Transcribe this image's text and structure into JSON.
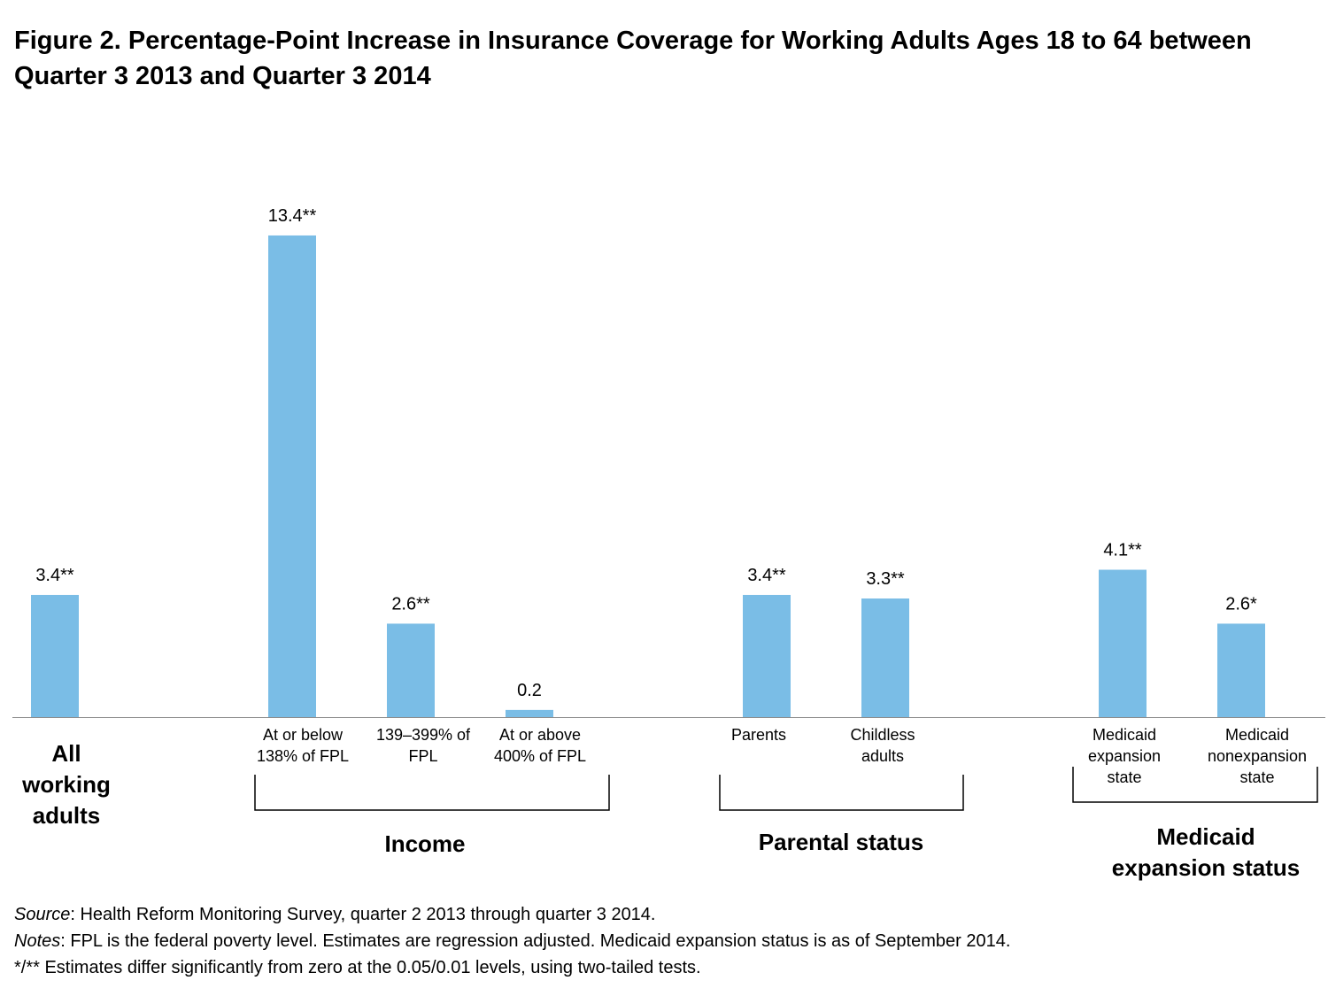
{
  "chart_data": {
    "type": "bar",
    "title": "Figure 2. Percentage-Point Increase in Insurance Coverage for Working Adults Ages 18 to 64 between Quarter 3 2013 and Quarter 3 2014",
    "xlabel": "",
    "ylabel": "",
    "ylim": [
      0,
      15
    ],
    "grid": false,
    "bar_color": "#7ABDE6",
    "categories": [
      {
        "label_lines": [
          "All",
          "working",
          "adults"
        ],
        "value": 3.4,
        "value_label": "3.4**",
        "group": "all"
      },
      {
        "label_lines": [
          "At or below",
          "138% of FPL"
        ],
        "value": 13.4,
        "value_label": "13.4**",
        "group": "income"
      },
      {
        "label_lines": [
          "139–399% of",
          "FPL"
        ],
        "value": 2.6,
        "value_label": "2.6**",
        "group": "income"
      },
      {
        "label_lines": [
          "At or above",
          "400% of FPL"
        ],
        "value": 0.2,
        "value_label": "0.2",
        "group": "income"
      },
      {
        "label_lines": [
          "Parents"
        ],
        "value": 3.4,
        "value_label": "3.4**",
        "group": "parental"
      },
      {
        "label_lines": [
          "Childless",
          "adults"
        ],
        "value": 3.3,
        "value_label": "3.3**",
        "group": "parental"
      },
      {
        "label_lines": [
          "Medicaid",
          "expansion",
          "state"
        ],
        "value": 4.1,
        "value_label": "4.1**",
        "group": "medicaid"
      },
      {
        "label_lines": [
          "Medicaid",
          "nonexpansion",
          "state"
        ],
        "value": 2.6,
        "value_label": "2.6*",
        "group": "medicaid"
      }
    ],
    "groups": [
      {
        "id": "income",
        "label_lines": [
          "Income"
        ]
      },
      {
        "id": "parental",
        "label_lines": [
          "Parental status"
        ]
      },
      {
        "id": "medicaid",
        "label_lines": [
          "Medicaid",
          "expansion status"
        ]
      }
    ]
  },
  "notes": {
    "source_lead": "Source",
    "source_text": ": Health Reform Monitoring Survey, quarter 2 2013 through quarter 3 2014.",
    "notes_lead": "Notes",
    "notes_text": ":  FPL is the federal poverty level.  Estimates are regression adjusted.  Medicaid expansion status is as of September 2014.",
    "significance": "*/** Estimates differ significantly from zero at the 0.05/0.01 levels, using two-tailed tests."
  }
}
